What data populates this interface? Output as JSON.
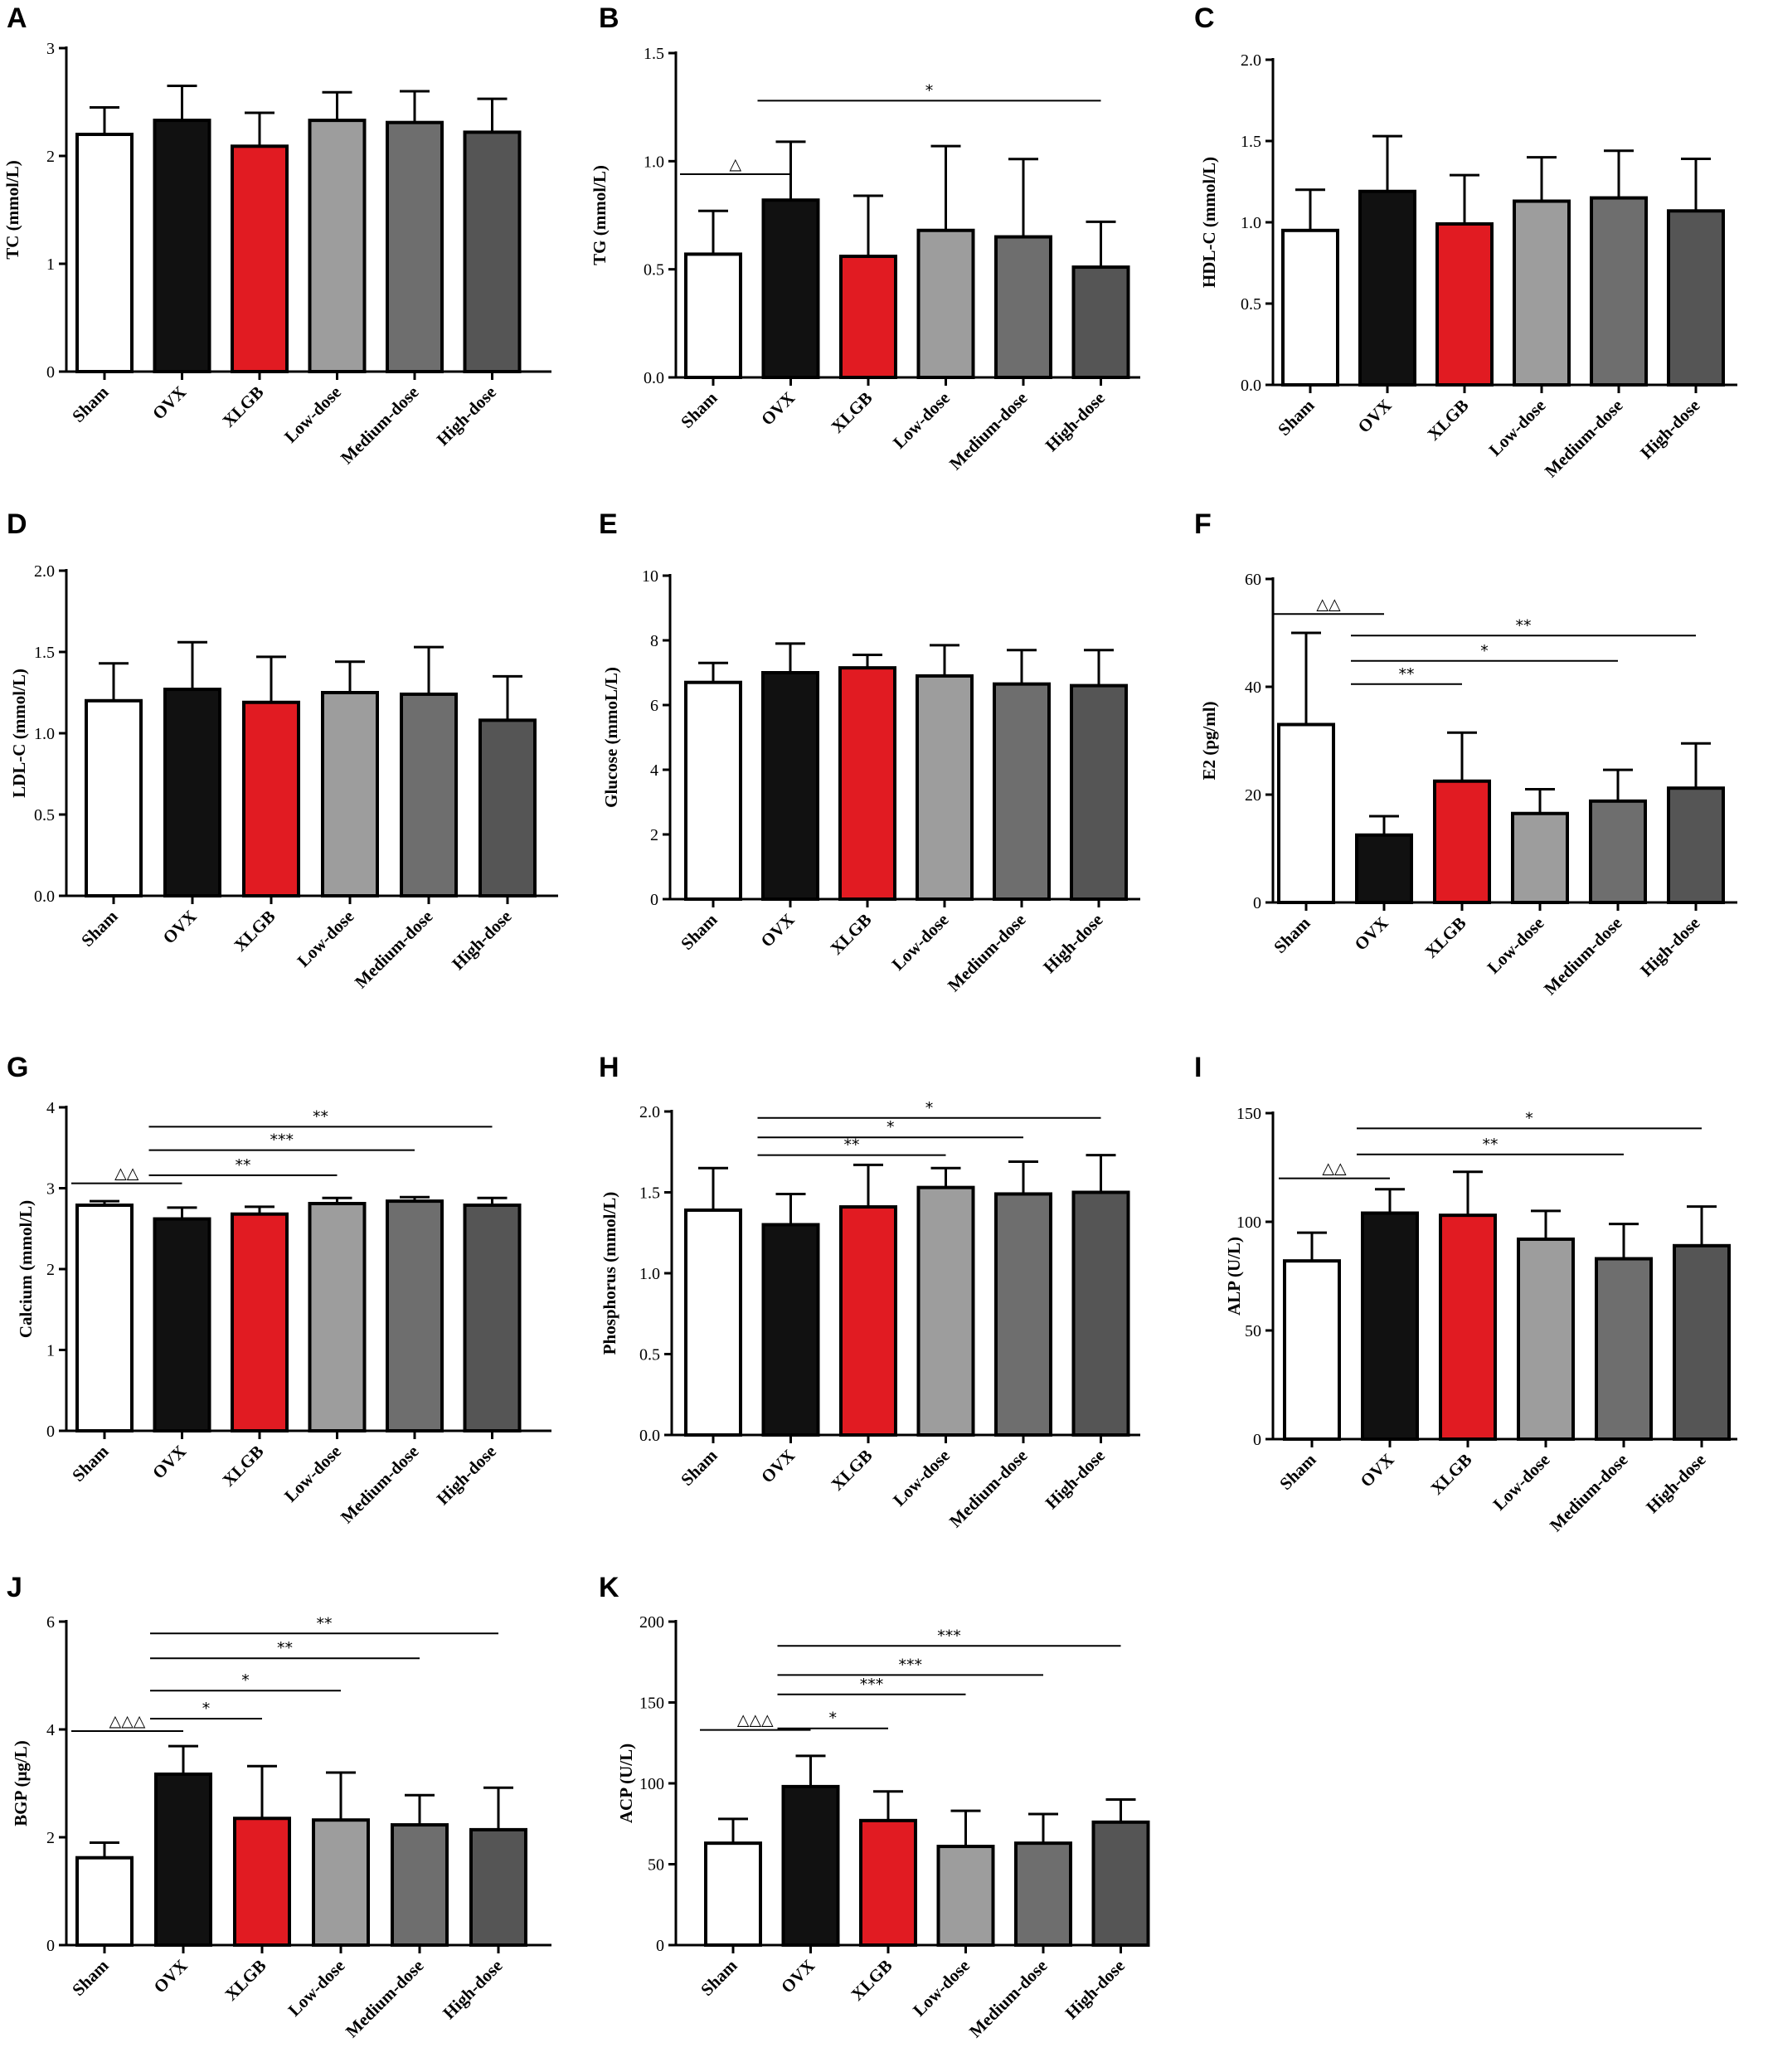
{
  "figure": {
    "categories": [
      "Sham",
      "OVX",
      "XLGB",
      "Low-dose",
      "Medium-dose",
      "High-dose"
    ],
    "colors": {
      "Sham": "#ffffff",
      "OVX": "#111111",
      "XLGB": "#e11b22",
      "Low-dose": "#9d9d9d",
      "Medium-dose": "#6e6e6e",
      "High-dose": "#555555"
    }
  },
  "chart_data": [
    {
      "panel": "A",
      "type": "bar",
      "ylabel": "TC (mmol/L)",
      "ylim": [
        0,
        3
      ],
      "yticks": [
        0,
        1,
        2,
        3
      ],
      "ytick_labels": [
        "0",
        "1",
        "2",
        "3"
      ],
      "values": [
        2.2,
        2.33,
        2.09,
        2.33,
        2.31,
        2.22
      ],
      "errors": [
        0.25,
        0.32,
        0.31,
        0.26,
        0.29,
        0.31
      ],
      "sig": []
    },
    {
      "panel": "B",
      "type": "bar",
      "ylabel": "TG (mmol/L)",
      "ylim": [
        0,
        1.5
      ],
      "yticks": [
        0,
        0.5,
        1.0,
        1.5
      ],
      "ytick_labels": [
        "0.0",
        "0.5",
        "1.0",
        "1.5"
      ],
      "values": [
        0.57,
        0.82,
        0.56,
        0.68,
        0.65,
        0.51
      ],
      "errors": [
        0.2,
        0.27,
        0.28,
        0.39,
        0.36,
        0.21
      ],
      "sig": [
        {
          "from": 0,
          "to": 1,
          "level": 0.94,
          "label": "△"
        },
        {
          "from": 1,
          "to": 5,
          "level": 1.28,
          "label": "*"
        }
      ]
    },
    {
      "panel": "C",
      "type": "bar",
      "ylabel": "HDL-C (mmol/L)",
      "ylim": [
        0,
        2.0
      ],
      "yticks": [
        0,
        0.5,
        1.0,
        1.5,
        2.0
      ],
      "ytick_labels": [
        "0.0",
        "0.5",
        "1.0",
        "1.5",
        "2.0"
      ],
      "values": [
        0.95,
        1.19,
        0.99,
        1.13,
        1.15,
        1.07
      ],
      "errors": [
        0.25,
        0.34,
        0.3,
        0.27,
        0.29,
        0.32
      ],
      "sig": []
    },
    {
      "panel": "D",
      "type": "bar",
      "ylabel": "LDL-C (mmol/L)",
      "ylim": [
        0,
        2.0
      ],
      "yticks": [
        0,
        0.5,
        1.0,
        1.5,
        2.0
      ],
      "ytick_labels": [
        "0.0",
        "0.5",
        "1.0",
        "1.5",
        "2.0"
      ],
      "values": [
        1.2,
        1.27,
        1.19,
        1.25,
        1.24,
        1.08
      ],
      "errors": [
        0.23,
        0.29,
        0.28,
        0.19,
        0.29,
        0.27
      ],
      "sig": []
    },
    {
      "panel": "E",
      "type": "bar",
      "ylabel": "Glucose (mmoL/L)",
      "ylim": [
        0,
        10
      ],
      "yticks": [
        0,
        2,
        4,
        6,
        8,
        10
      ],
      "ytick_labels": [
        "0",
        "2",
        "4",
        "6",
        "8",
        "10"
      ],
      "values": [
        6.7,
        7.0,
        7.15,
        6.9,
        6.65,
        6.6
      ],
      "errors": [
        0.6,
        0.9,
        0.4,
        0.95,
        1.05,
        1.1
      ],
      "sig": []
    },
    {
      "panel": "F",
      "type": "bar",
      "ylabel": "E2 (pg/ml)",
      "ylim": [
        0,
        60
      ],
      "yticks": [
        0,
        20,
        40,
        60
      ],
      "ytick_labels": [
        "0",
        "20",
        "40",
        "60"
      ],
      "values": [
        33,
        12.5,
        22.5,
        16.5,
        18.8,
        21.2
      ],
      "errors": [
        17,
        3.5,
        9,
        4.5,
        5.8,
        8.3
      ],
      "sig": [
        {
          "from": 0,
          "to": 1,
          "level": 53.5,
          "label": "△△"
        },
        {
          "from": 1,
          "to": 2,
          "level": 40.5,
          "label": "**"
        },
        {
          "from": 1,
          "to": 4,
          "level": 44.8,
          "label": "*"
        },
        {
          "from": 1,
          "to": 5,
          "level": 49.5,
          "label": "**"
        }
      ]
    },
    {
      "panel": "G",
      "type": "bar",
      "ylabel": "Calcium (mmol/L)",
      "ylim": [
        0,
        4
      ],
      "yticks": [
        0,
        1,
        2,
        3,
        4
      ],
      "ytick_labels": [
        "0",
        "1",
        "2",
        "3",
        "4"
      ],
      "values": [
        2.79,
        2.62,
        2.68,
        2.81,
        2.84,
        2.79
      ],
      "errors": [
        0.05,
        0.14,
        0.09,
        0.07,
        0.05,
        0.09
      ],
      "sig": [
        {
          "from": 0,
          "to": 1,
          "level": 3.06,
          "label": "△△"
        },
        {
          "from": 1,
          "to": 3,
          "level": 3.16,
          "label": "**"
        },
        {
          "from": 1,
          "to": 4,
          "level": 3.47,
          "label": "***"
        },
        {
          "from": 1,
          "to": 5,
          "level": 3.76,
          "label": "**"
        }
      ]
    },
    {
      "panel": "H",
      "type": "bar",
      "ylabel": "Phosphorus (mmol/L)",
      "ylim": [
        0,
        2.0
      ],
      "yticks": [
        0,
        0.5,
        1.0,
        1.5,
        2.0
      ],
      "ytick_labels": [
        "0.0",
        "0.5",
        "1.0",
        "1.5",
        "2.0"
      ],
      "values": [
        1.39,
        1.3,
        1.41,
        1.53,
        1.49,
        1.5
      ],
      "errors": [
        0.26,
        0.19,
        0.26,
        0.12,
        0.2,
        0.23
      ],
      "sig": [
        {
          "from": 1,
          "to": 3,
          "level": 1.73,
          "label": "**"
        },
        {
          "from": 1,
          "to": 4,
          "level": 1.84,
          "label": "*"
        },
        {
          "from": 1,
          "to": 5,
          "level": 1.96,
          "label": "*"
        }
      ]
    },
    {
      "panel": "I",
      "type": "bar",
      "ylabel": "ALP (U/L)",
      "ylim": [
        0,
        150
      ],
      "yticks": [
        0,
        50,
        100,
        150
      ],
      "ytick_labels": [
        "0",
        "50",
        "100",
        "150"
      ],
      "values": [
        82,
        104,
        103,
        92,
        83,
        89
      ],
      "errors": [
        13,
        11,
        20,
        13,
        16,
        18
      ],
      "sig": [
        {
          "from": 0,
          "to": 1,
          "level": 120,
          "label": "△△"
        },
        {
          "from": 1,
          "to": 4,
          "level": 131,
          "label": "**"
        },
        {
          "from": 1,
          "to": 5,
          "level": 143,
          "label": "*"
        }
      ]
    },
    {
      "panel": "J",
      "type": "bar",
      "ylabel": "BGP (μg/L)",
      "ylim": [
        0,
        6
      ],
      "yticks": [
        0,
        2,
        4,
        6
      ],
      "ytick_labels": [
        "0",
        "2",
        "4",
        "6"
      ],
      "values": [
        1.62,
        3.17,
        2.35,
        2.32,
        2.23,
        2.14
      ],
      "errors": [
        0.28,
        0.52,
        0.97,
        0.88,
        0.55,
        0.78
      ],
      "sig": [
        {
          "from": 0,
          "to": 1,
          "level": 3.97,
          "label": "△△△"
        },
        {
          "from": 1,
          "to": 2,
          "level": 4.2,
          "label": "*"
        },
        {
          "from": 1,
          "to": 3,
          "level": 4.72,
          "label": "*"
        },
        {
          "from": 1,
          "to": 4,
          "level": 5.32,
          "label": "**"
        },
        {
          "from": 1,
          "to": 5,
          "level": 5.78,
          "label": "**"
        }
      ]
    },
    {
      "panel": "K",
      "type": "bar",
      "ylabel": "ACP (U/L)",
      "ylim": [
        0,
        200
      ],
      "yticks": [
        0,
        50,
        100,
        150,
        200
      ],
      "ytick_labels": [
        "0",
        "50",
        "100",
        "150",
        "200"
      ],
      "values": [
        63,
        98,
        77,
        61,
        63,
        76
      ],
      "errors": [
        15,
        19,
        18,
        22,
        18,
        14
      ],
      "sig": [
        {
          "from": 0,
          "to": 1,
          "level": 133,
          "label": "△△△"
        },
        {
          "from": 1,
          "to": 2,
          "level": 134,
          "label": "*"
        },
        {
          "from": 1,
          "to": 3,
          "level": 155,
          "label": "***"
        },
        {
          "from": 1,
          "to": 4,
          "level": 167,
          "label": "***"
        },
        {
          "from": 1,
          "to": 5,
          "level": 185,
          "label": "***"
        }
      ]
    }
  ]
}
